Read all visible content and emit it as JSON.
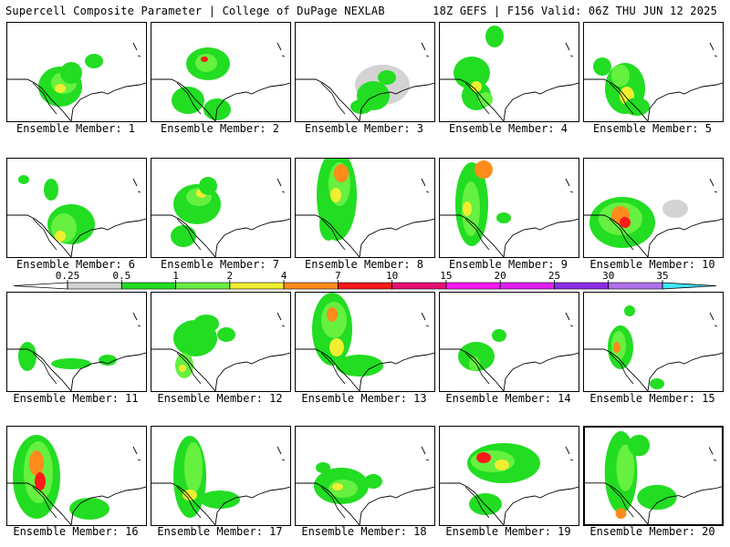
{
  "header": {
    "title": "Supercell Composite Parameter | College of DuPage NEXLAB",
    "run_info": "18Z GEFS | F156 Valid: 06Z THU JUN 12 2025"
  },
  "members": [
    {
      "label": "Ensemble Member: 1"
    },
    {
      "label": "Ensemble Member: 2"
    },
    {
      "label": "Ensemble Member: 3"
    },
    {
      "label": "Ensemble Member: 4"
    },
    {
      "label": "Ensemble Member: 5"
    },
    {
      "label": "Ensemble Member: 6"
    },
    {
      "label": "Ensemble Member: 7"
    },
    {
      "label": "Ensemble Member: 8"
    },
    {
      "label": "Ensemble Member: 9"
    },
    {
      "label": "Ensemble Member: 10"
    },
    {
      "label": "Ensemble Member: 11"
    },
    {
      "label": "Ensemble Member: 12"
    },
    {
      "label": "Ensemble Member: 13"
    },
    {
      "label": "Ensemble Member: 14"
    },
    {
      "label": "Ensemble Member: 15"
    },
    {
      "label": "Ensemble Member: 16"
    },
    {
      "label": "Ensemble Member: 17"
    },
    {
      "label": "Ensemble Member: 18"
    },
    {
      "label": "Ensemble Member: 19"
    },
    {
      "label": "Ensemble Member: 20",
      "selected": true
    }
  ],
  "colorbar": {
    "ticks": [
      "0.25",
      "0.5",
      "1",
      "2",
      "4",
      "7",
      "10",
      "15",
      "20",
      "25",
      "30",
      "35"
    ],
    "colors": [
      "#d3d3d3",
      "#22dd22",
      "#66f040",
      "#f0ee30",
      "#ff8c1a",
      "#ff1a1a",
      "#e81070",
      "#ff18ff",
      "#e020ff",
      "#8c2ce8",
      "#b070e8",
      "#40e8ff"
    ]
  }
}
